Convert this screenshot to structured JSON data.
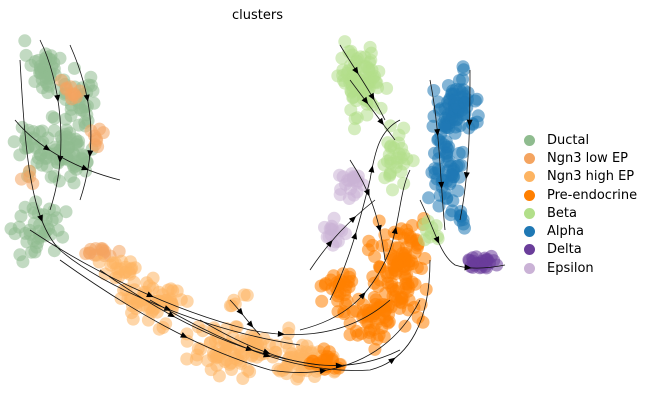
{
  "chart_data": {
    "type": "scatter",
    "title": "clusters",
    "xlabel": "",
    "ylabel": "",
    "grid": false,
    "legend_position": "right",
    "has_velocity_streamlines": true,
    "series": [
      {
        "name": "Ductal",
        "color": "#8fbc8f"
      },
      {
        "name": "Ngn3 low EP",
        "color": "#f4a460"
      },
      {
        "name": "Ngn3 high EP",
        "color": "#fdb462"
      },
      {
        "name": "Pre-endocrine",
        "color": "#ff7f00"
      },
      {
        "name": "Beta",
        "color": "#b2df8a"
      },
      {
        "name": "Alpha",
        "color": "#1f78b4"
      },
      {
        "name": "Delta",
        "color": "#6a3d9a"
      },
      {
        "name": "Epsilon",
        "color": "#cab2d6"
      }
    ]
  }
}
